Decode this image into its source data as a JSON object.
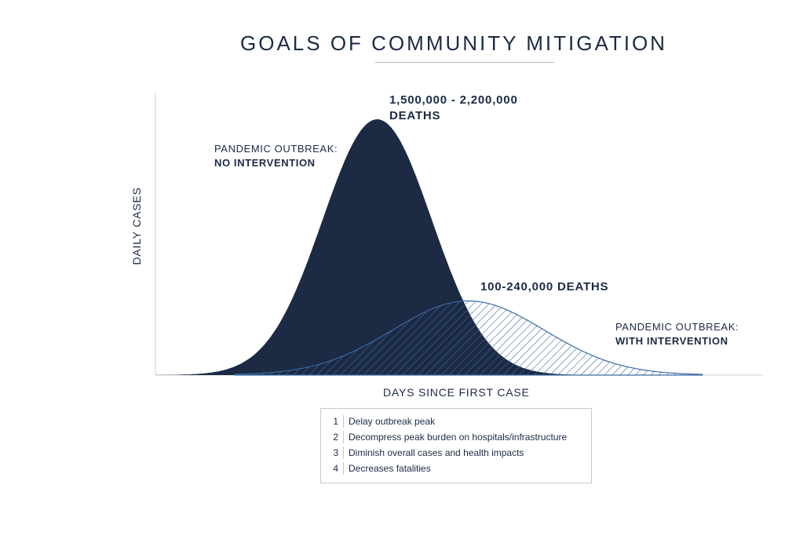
{
  "title": "GOALS OF COMMUNITY MITIGATION",
  "chart_data": {
    "type": "area",
    "xlabel": "DAYS SINCE FIRST CASE",
    "ylabel": "DAILY CASES",
    "grid": false,
    "series": [
      {
        "label_line1": "PANDEMIC OUTBREAK:",
        "label_line2": "NO INTERVENTION",
        "peak_line1": "1,500,000 - 2,200,000",
        "peak_line2": "DEATHS",
        "color": "#1c2a44",
        "fill": "solid",
        "center": 0.365,
        "width": 0.09,
        "height": 1.0
      },
      {
        "label_line1": "PANDEMIC OUTBREAK:",
        "label_line2": "WITH INTERVENTION",
        "peak_line1": "100-240,000 DEATHS",
        "color": "#3d6aa3",
        "fill": "hatched",
        "center": 0.515,
        "width": 0.125,
        "height": 0.29
      }
    ]
  },
  "goals": [
    {
      "num": "1",
      "text": "Delay outbreak peak"
    },
    {
      "num": "2",
      "text": "Decompress peak burden on hospitals/infrastructure"
    },
    {
      "num": "3",
      "text": "Diminish overall cases and health impacts"
    },
    {
      "num": "4",
      "text": "Decreases fatalities"
    }
  ]
}
